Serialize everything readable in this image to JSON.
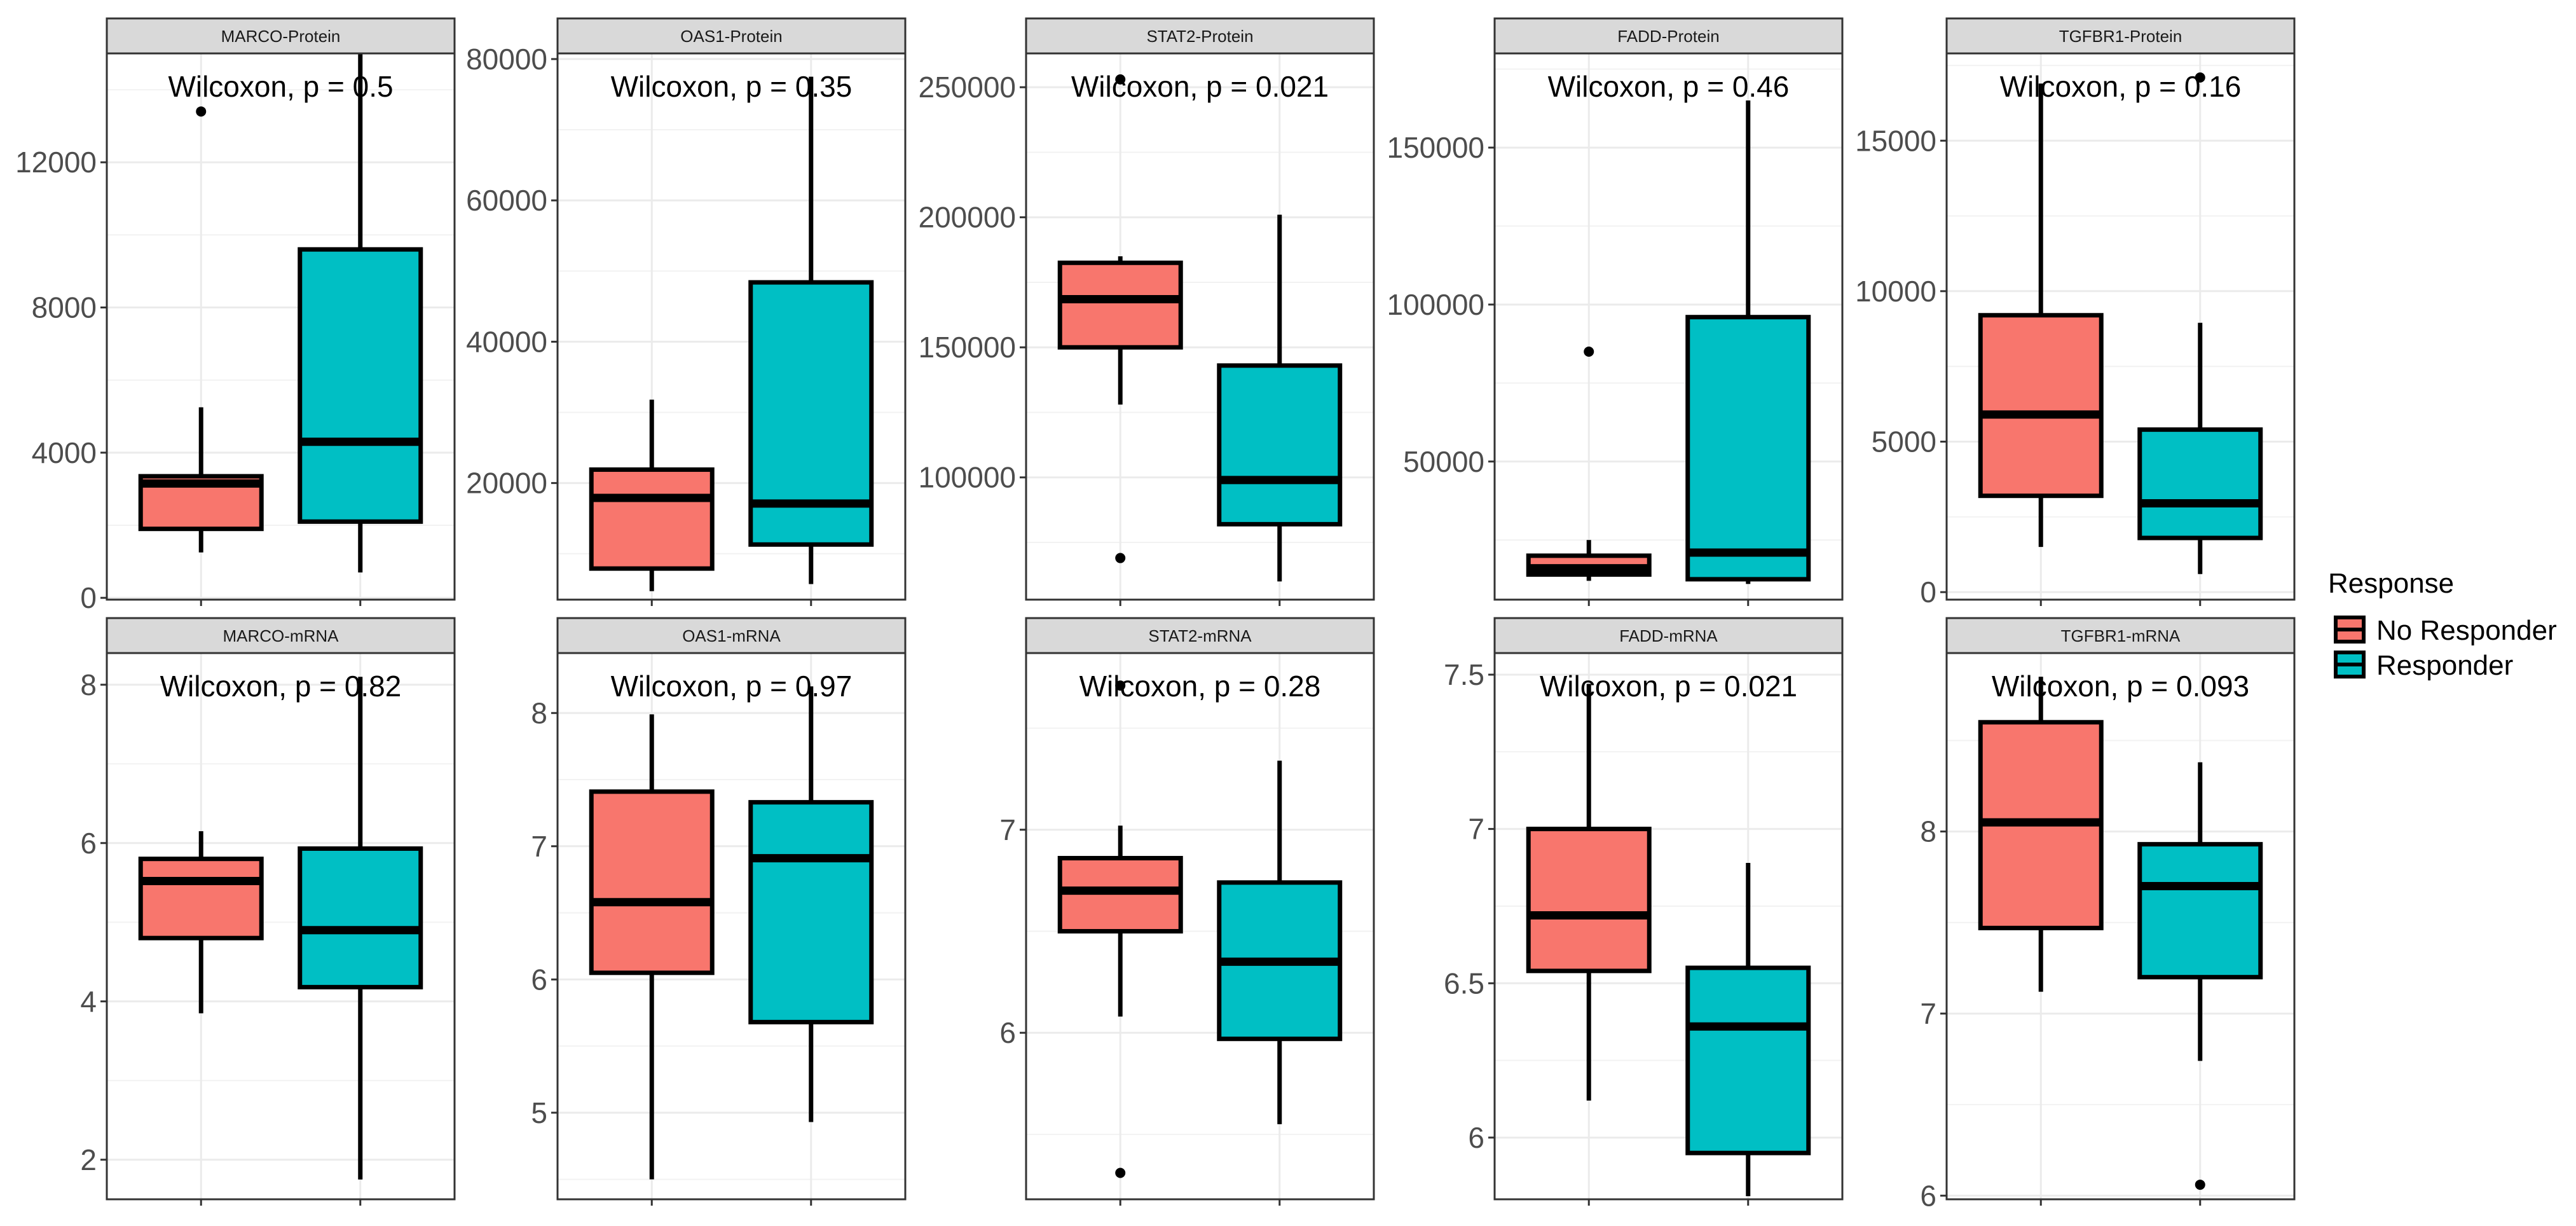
{
  "chart_data": {
    "type": "boxplot",
    "layout": "facet grid, 2 rows x 5 columns, free y scales",
    "legend": {
      "title": "Response",
      "position": "right",
      "entries": [
        {
          "name": "No Responder",
          "color": "#F8766D"
        },
        {
          "name": "Responder",
          "color": "#00BFC4"
        }
      ]
    },
    "panels": [
      {
        "strip": "MARCO-Protein",
        "pvalue_label": "Wilcoxon, p = 0.5",
        "ylim": [
          -50,
          15000
        ],
        "yticks": [
          0,
          4000,
          8000,
          12000
        ],
        "groups": [
          {
            "group": "No Responder",
            "lower_whisker": 1250,
            "q1": 1900,
            "median": 3150,
            "q3": 3350,
            "upper_whisker": 5250,
            "outliers": [
              13400
            ]
          },
          {
            "group": "Responder",
            "lower_whisker": 700,
            "q1": 2100,
            "median": 4300,
            "q3": 9600,
            "upper_whisker": 15000,
            "outliers": []
          }
        ]
      },
      {
        "strip": "OAS1-Protein",
        "pvalue_label": "Wilcoxon, p = 0.35",
        "ylim": [
          3500,
          80800
        ],
        "yticks": [
          20000,
          40000,
          60000,
          80000
        ],
        "groups": [
          {
            "group": "No Responder",
            "lower_whisker": 4700,
            "q1": 7900,
            "median": 17900,
            "q3": 21900,
            "upper_whisker": 31800,
            "outliers": []
          },
          {
            "group": "Responder",
            "lower_whisker": 5700,
            "q1": 11300,
            "median": 17100,
            "q3": 48400,
            "upper_whisker": 77500,
            "outliers": []
          }
        ]
      },
      {
        "strip": "STAT2-Protein",
        "pvalue_label": "Wilcoxon, p = 0.021",
        "ylim": [
          53000,
          263000
        ],
        "yticks": [
          100000,
          150000,
          200000,
          250000
        ],
        "groups": [
          {
            "group": "No Responder",
            "lower_whisker": 128000,
            "q1": 150000,
            "median": 168500,
            "q3": 182500,
            "upper_whisker": 185000,
            "outliers": [
              69000,
              253000
            ]
          },
          {
            "group": "Responder",
            "lower_whisker": 60000,
            "q1": 82000,
            "median": 99000,
            "q3": 143000,
            "upper_whisker": 201000,
            "outliers": []
          }
        ]
      },
      {
        "strip": "FADD-Protein",
        "pvalue_label": "Wilcoxon, p = 0.46",
        "ylim": [
          6000,
          180000
        ],
        "yticks": [
          50000,
          100000,
          150000
        ],
        "groups": [
          {
            "group": "No Responder",
            "lower_whisker": 12000,
            "q1": 14000,
            "median": 16000,
            "q3": 20000,
            "upper_whisker": 25000,
            "outliers": [
              85000
            ]
          },
          {
            "group": "Responder",
            "lower_whisker": 11000,
            "q1": 12500,
            "median": 21000,
            "q3": 96000,
            "upper_whisker": 165000,
            "outliers": []
          }
        ]
      },
      {
        "strip": "TGFBR1-Protein",
        "pvalue_label": "Wilcoxon, p = 0.16",
        "ylim": [
          -250,
          17900
        ],
        "yticks": [
          0,
          5000,
          10000,
          15000
        ],
        "groups": [
          {
            "group": "No Responder",
            "lower_whisker": 1500,
            "q1": 3200,
            "median": 5900,
            "q3": 9200,
            "upper_whisker": 16900,
            "outliers": []
          },
          {
            "group": "Responder",
            "lower_whisker": 600,
            "q1": 1800,
            "median": 2950,
            "q3": 5400,
            "upper_whisker": 8950,
            "outliers": [
              17100
            ]
          }
        ]
      },
      {
        "strip": "MARCO-mRNA",
        "pvalue_label": "Wilcoxon, p = 0.82",
        "ylim": [
          1.5,
          8.4
        ],
        "yticks": [
          2,
          4,
          6,
          8
        ],
        "groups": [
          {
            "group": "No Responder",
            "lower_whisker": 3.85,
            "q1": 4.8,
            "median": 5.52,
            "q3": 5.8,
            "upper_whisker": 6.15,
            "outliers": []
          },
          {
            "group": "Responder",
            "lower_whisker": 1.75,
            "q1": 4.18,
            "median": 4.9,
            "q3": 5.93,
            "upper_whisker": 8.1,
            "outliers": []
          }
        ]
      },
      {
        "strip": "OAS1-mRNA",
        "pvalue_label": "Wilcoxon, p = 0.97",
        "ylim": [
          4.35,
          8.45
        ],
        "yticks": [
          5,
          6,
          7,
          8
        ],
        "groups": [
          {
            "group": "No Responder",
            "lower_whisker": 4.5,
            "q1": 6.05,
            "median": 6.58,
            "q3": 7.41,
            "upper_whisker": 7.99,
            "outliers": []
          },
          {
            "group": "Responder",
            "lower_whisker": 4.93,
            "q1": 5.68,
            "median": 6.91,
            "q3": 7.33,
            "upper_whisker": 8.2,
            "outliers": []
          }
        ]
      },
      {
        "strip": "STAT2-mRNA",
        "pvalue_label": "Wilcoxon, p = 0.28",
        "ylim": [
          5.18,
          7.87
        ],
        "yticks": [
          6,
          7
        ],
        "groups": [
          {
            "group": "No Responder",
            "lower_whisker": 6.08,
            "q1": 6.5,
            "median": 6.7,
            "q3": 6.86,
            "upper_whisker": 7.02,
            "outliers": [
              5.31,
              7.71
            ]
          },
          {
            "group": "Responder",
            "lower_whisker": 5.55,
            "q1": 5.97,
            "median": 6.35,
            "q3": 6.74,
            "upper_whisker": 7.34,
            "outliers": []
          }
        ]
      },
      {
        "strip": "FADD-mRNA",
        "pvalue_label": "Wilcoxon, p = 0.021",
        "ylim": [
          5.8,
          7.57
        ],
        "yticks": [
          6.0,
          6.5,
          7.0,
          7.5
        ],
        "groups": [
          {
            "group": "No Responder",
            "lower_whisker": 6.12,
            "q1": 6.54,
            "median": 6.72,
            "q3": 7.0,
            "upper_whisker": 7.47,
            "outliers": []
          },
          {
            "group": "Responder",
            "lower_whisker": 5.81,
            "q1": 5.95,
            "median": 6.36,
            "q3": 6.55,
            "upper_whisker": 6.89,
            "outliers": []
          }
        ]
      },
      {
        "strip": "TGFBR1-mRNA",
        "pvalue_label": "Wilcoxon, p = 0.093",
        "ylim": [
          5.98,
          8.98
        ],
        "yticks": [
          6,
          7,
          8
        ],
        "groups": [
          {
            "group": "No Responder",
            "lower_whisker": 7.12,
            "q1": 7.47,
            "median": 8.05,
            "q3": 8.6,
            "upper_whisker": 8.85,
            "outliers": []
          },
          {
            "group": "Responder",
            "lower_whisker": 6.74,
            "q1": 7.2,
            "median": 7.7,
            "q3": 7.93,
            "upper_whisker": 8.38,
            "outliers": [
              6.06
            ]
          }
        ]
      }
    ]
  }
}
